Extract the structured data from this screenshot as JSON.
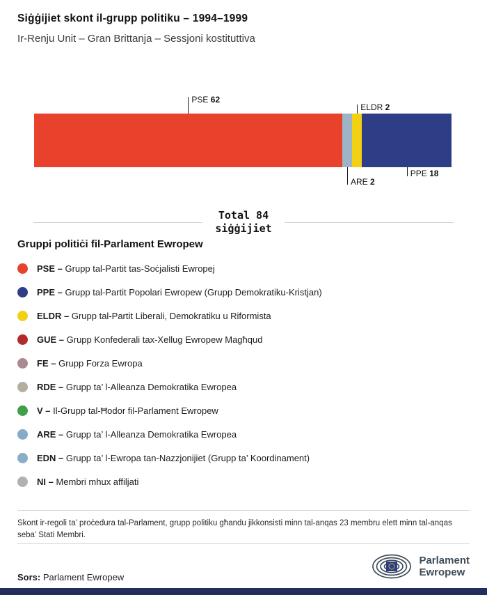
{
  "title": "Siġġijiet skont il-grupp politiku – 1994–1999",
  "subtitle": "Ir-Renju Unit – Gran Brittanja – Sessjoni kostituttiva",
  "chart_data": {
    "type": "bar",
    "orientation": "horizontal",
    "stacked": true,
    "title": "Siġġijiet skont il-grupp politiku – 1994–1999",
    "total": 84,
    "total_label": "Total 84",
    "total_sublabel": "siġġijiet",
    "segments": [
      {
        "name": "PSE",
        "value": 62,
        "color": "#e8412c"
      },
      {
        "name": "ARE",
        "value": 2,
        "color": "#9db4c6"
      },
      {
        "name": "ELDR",
        "value": 2,
        "color": "#f2d014"
      },
      {
        "name": "PPE",
        "value": 18,
        "color": "#2d3e87"
      }
    ]
  },
  "legend": {
    "heading": "Gruppi politiċi fil-Parlament Ewropew",
    "items": [
      {
        "abbr": "PSE –",
        "desc": "Grupp tal-Partit tas-Soċjalisti Ewropej",
        "color": "#e8412c"
      },
      {
        "abbr": "PPE –",
        "desc": "Grupp tal-Partit Popolari Ewropew (Grupp Demokratiku-Kristjan)",
        "color": "#2d3e87"
      },
      {
        "abbr": "ELDR –",
        "desc": "Grupp tal-Partit Liberali, Demokratiku u Riformista",
        "color": "#f2d014"
      },
      {
        "abbr": "GUE –",
        "desc": "Grupp Konfederali tax-Xellug Ewropew Magħqud",
        "color": "#b22a2e"
      },
      {
        "abbr": "FE –",
        "desc": "Grupp Forza Ewropa",
        "color": "#aa8a90"
      },
      {
        "abbr": "RDE –",
        "desc": "Grupp ta’ l-Alleanza Demokratika Ewropea",
        "color": "#b5ada0"
      },
      {
        "abbr": "V –",
        "desc": "Il-Grupp tal-Ħodor fil-Parlament Ewropew",
        "color": "#40a047"
      },
      {
        "abbr": "ARE –",
        "desc": "Grupp ta’ l-Alleanza Demokratika Ewropea",
        "color": "#86abc8"
      },
      {
        "abbr": "EDN –",
        "desc": "Grupp ta’ l-Ewropa tan-Nazzjonijiet (Grupp ta’ Koordinament)",
        "color": "#8cadc6"
      },
      {
        "abbr": "NI –",
        "desc": "Membri mhux affiljati",
        "color": "#b1b1b0"
      }
    ]
  },
  "footnote": "Skont ir-regoli ta’ proċedura tal-Parlament, grupp politiku għandu jikkonsisti minn tal-anqas 23 membru elett minn tal-anqas seba’ Stati Membri.",
  "source": {
    "label": "Sors:",
    "value": "Parlament Ewropew"
  },
  "logo": {
    "line1": "Parlament",
    "line2": "Ewropew"
  },
  "colors": {
    "accent_red": "#e8412c",
    "accent_blue": "#2d3e87",
    "accent_yellow": "#f2d014",
    "footer_strip": "#242e5e"
  }
}
